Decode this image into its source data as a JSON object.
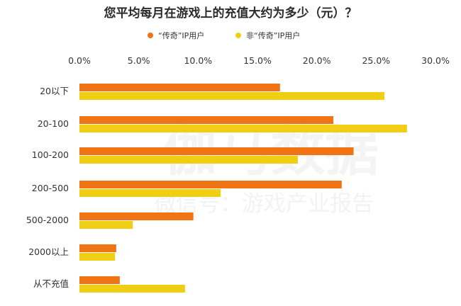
{
  "watermark": {
    "main": "伽马数据",
    "sub": "微信号：游戏产业报告"
  },
  "chart_data": {
    "type": "bar",
    "orientation": "horizontal",
    "title": "您平均每月在游戏上的充值大约为多少（元）？",
    "categories": [
      "20以下",
      "20-100",
      "100-200",
      "200-500",
      "500-2000",
      "2000以上",
      "从不充值"
    ],
    "series": [
      {
        "name": "“传奇”IP用户",
        "color": "#f07314",
        "values": [
          16.9,
          21.4,
          23.1,
          22.1,
          9.6,
          3.1,
          3.4
        ]
      },
      {
        "name": "非“传奇”IP用户",
        "color": "#f0ce14",
        "values": [
          25.7,
          27.6,
          18.4,
          11.9,
          4.5,
          3.0,
          8.9
        ]
      }
    ],
    "xaxis": {
      "ticks": [
        "0.0%",
        "5.0%",
        "10.0%",
        "15.0%",
        "20.0%",
        "25.0%",
        "30.0%"
      ],
      "range": [
        0,
        30
      ],
      "position": "top"
    },
    "legend": {
      "position": "top-center"
    },
    "grid": false
  }
}
